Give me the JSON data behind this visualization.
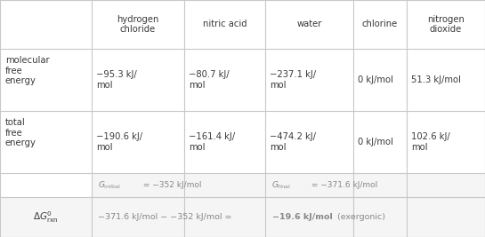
{
  "col_headers": [
    "hydrogen\nchloride",
    "nitric acid",
    "water",
    "chlorine",
    "nitrogen\ndioxide"
  ],
  "mol_free_energy": [
    "−95.3 kJ/\nmol",
    "−80.7 kJ/\nmol",
    "−237.1 kJ/\nmol",
    "0 kJ/mol",
    "51.3 kJ/mol"
  ],
  "total_free_energy": [
    "−190.6 kJ/\nmol",
    "−161.4 kJ/\nmol",
    "−474.2 kJ/\nmol",
    "0 kJ/mol",
    "102.6 kJ/\nmol"
  ],
  "text_color": "#3a3a3a",
  "gray_text": "#888888",
  "grid_color": "#c8c8c8",
  "bg_color": "#ffffff",
  "row_bg": "#f5f5f5"
}
